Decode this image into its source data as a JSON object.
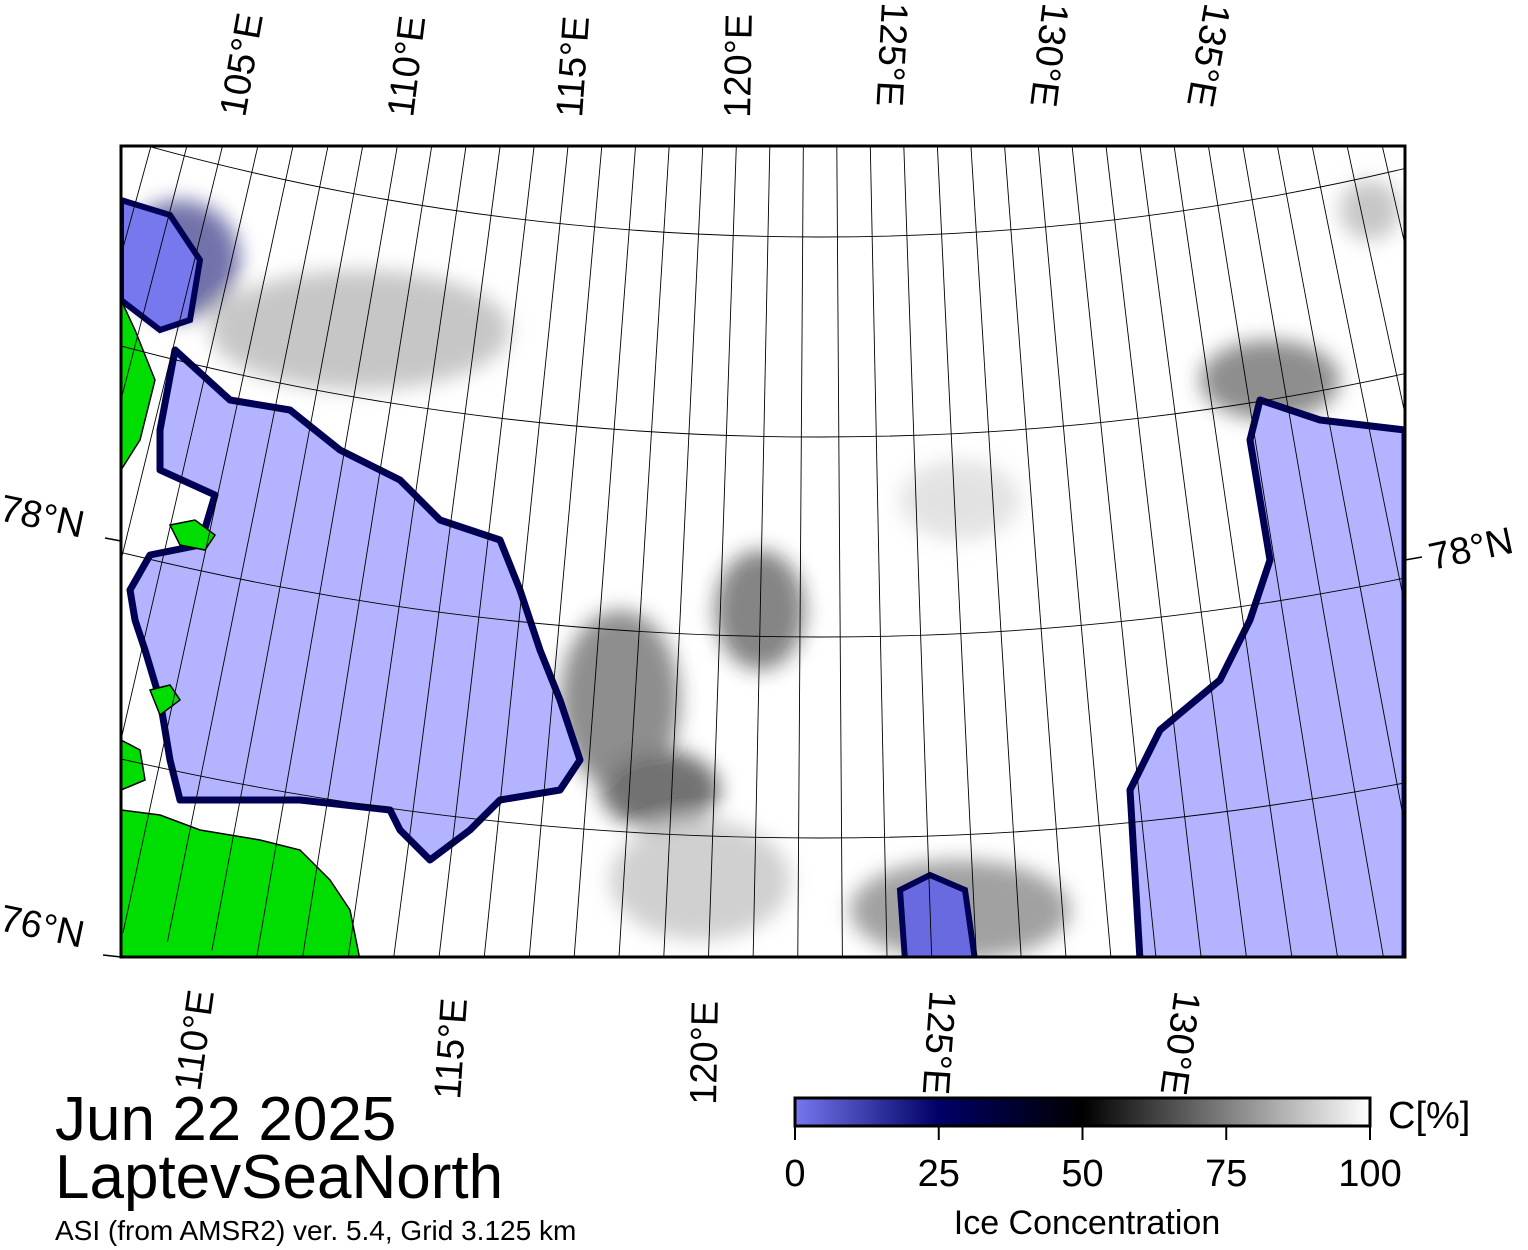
{
  "map": {
    "date": "Jun 22 2025",
    "region": "LaptevSeaNorth",
    "source": "ASI (from AMSR2) ver. 5.4,  Grid 3.125 km",
    "top_lon_labels": [
      "105°E",
      "110°E",
      "115°E",
      "120°E",
      "125°E",
      "130°E",
      "135°E"
    ],
    "bottom_lon_labels": [
      "110°E",
      "115°E",
      "120°E",
      "125°E",
      "130°E"
    ],
    "left_lat_labels": [
      "78°N",
      "76°N"
    ],
    "right_lat_labels": [
      "78°N"
    ]
  },
  "colorbar": {
    "title": "Ice Concentration",
    "unit": "C[%]",
    "lim": [
      0,
      100
    ],
    "ticks": [
      0,
      25,
      50,
      75,
      100
    ]
  }
}
